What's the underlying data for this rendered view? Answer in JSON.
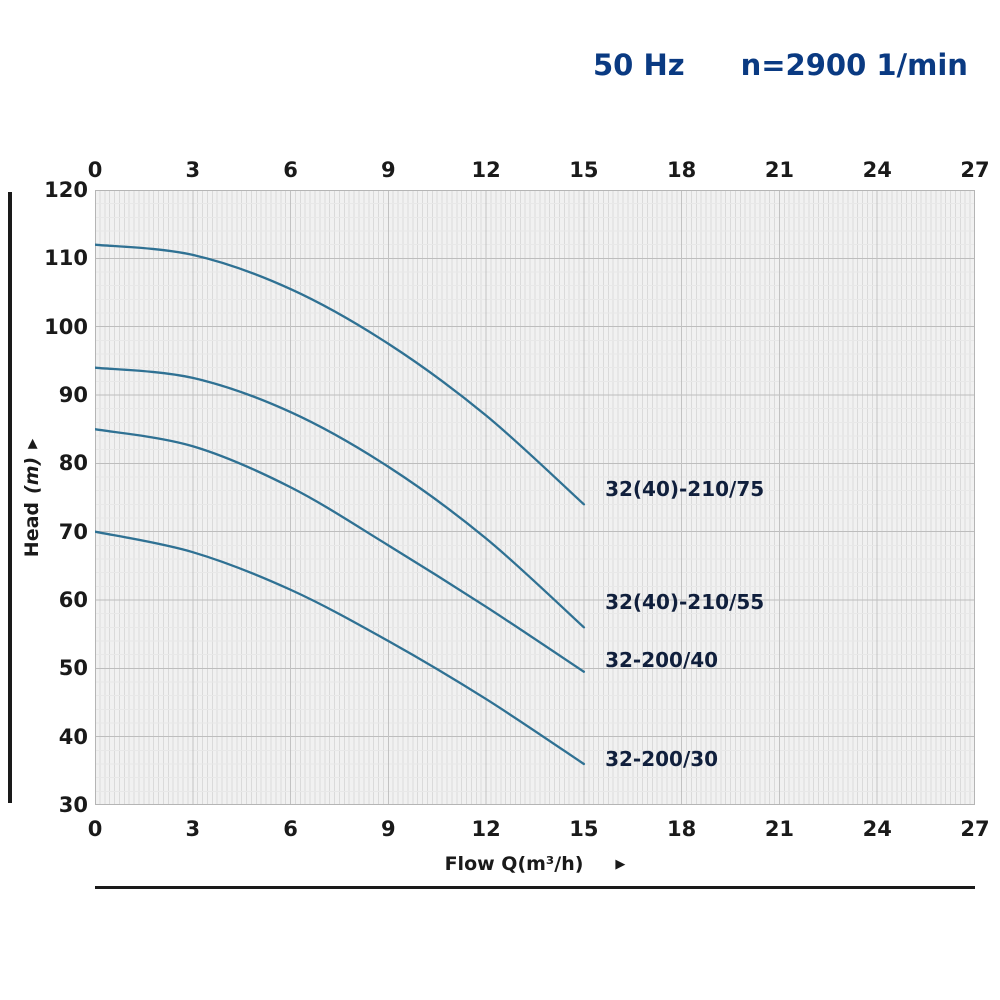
{
  "header": {
    "hz_label": "50 Hz",
    "rpm_label": "n=2900 1/min"
  },
  "axes": {
    "y_label_text": "Head",
    "y_label_unit": "(m)",
    "x_label_text": "Flow Q",
    "x_label_unit": "(m³/h)",
    "arrow_icon": "▶"
  },
  "chart_data": {
    "type": "line",
    "title": "50 Hz  n=2900 1/min",
    "xlabel": "Flow Q(m³/h)",
    "ylabel": "Head (m)",
    "xlim": [
      0,
      27
    ],
    "ylim": [
      30,
      120
    ],
    "x_ticks": [
      0,
      3,
      6,
      9,
      12,
      15,
      18,
      21,
      24,
      27
    ],
    "y_ticks": [
      30,
      40,
      50,
      60,
      70,
      80,
      90,
      100,
      110,
      120
    ],
    "grid": true,
    "legend_position": "right-of-curve-ends",
    "series": [
      {
        "name": "32(40)-210/75",
        "x": [
          0,
          3,
          6,
          9,
          12,
          15
        ],
        "y": [
          112,
          110.5,
          105.5,
          97.5,
          87,
          74
        ],
        "label_pos": [
          15.65,
          76
        ]
      },
      {
        "name": "32(40)-210/55",
        "x": [
          0,
          3,
          6,
          9,
          12,
          15
        ],
        "y": [
          94,
          92.5,
          87.5,
          79.5,
          69,
          56
        ],
        "label_pos": [
          15.65,
          59.5
        ]
      },
      {
        "name": "32-200/40",
        "x": [
          0,
          3,
          6,
          9,
          12,
          15
        ],
        "y": [
          85,
          82.5,
          76.5,
          68,
          59,
          49.5
        ],
        "label_pos": [
          15.65,
          51
        ]
      },
      {
        "name": "32-200/30",
        "x": [
          0,
          3,
          6,
          9,
          12,
          15
        ],
        "y": [
          70,
          67,
          61.5,
          54,
          45.5,
          36
        ],
        "label_pos": [
          15.65,
          36.5
        ]
      }
    ],
    "colors": {
      "curve": "#2f7193",
      "curve_label": "#101f3c",
      "header_text": "#0a3a82",
      "tick_label": "#1a1a1a",
      "grid_bg": "#f1f1f1",
      "grid_minor_v": "#dadada",
      "grid_minor_h": "#e8e8e8",
      "grid_major_h": "#bdbdbd",
      "grid_major_v": "#c2c2c2",
      "border": "#b5b5b5",
      "axis_line": "#1a1a1a"
    }
  }
}
